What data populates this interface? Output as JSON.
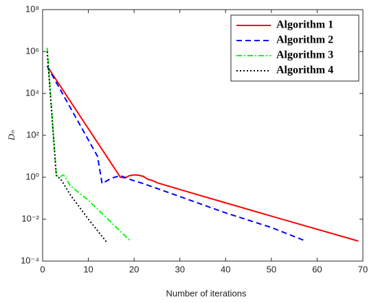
{
  "chart_data": {
    "type": "line",
    "xlabel": "Number of iterations",
    "ylabel": "Dₙ",
    "xlim": [
      0,
      70
    ],
    "xticks": [
      0,
      10,
      20,
      30,
      40,
      50,
      60,
      70
    ],
    "ylim": [
      0.0001,
      100000000
    ],
    "yscale": "log",
    "yticks": [
      {
        "value": 0.0001,
        "label": "10⁻⁴"
      },
      {
        "value": 0.01,
        "label": "10⁻²"
      },
      {
        "value": 1,
        "label": "10⁰"
      },
      {
        "value": 100,
        "label": "10²"
      },
      {
        "value": 10000,
        "label": "10⁴"
      },
      {
        "value": 1000000,
        "label": "10⁶"
      },
      {
        "value": 100000000,
        "label": "10⁸"
      }
    ],
    "legend": "upper right",
    "series": [
      {
        "name": "Algorithm 1",
        "color": "#ff0000",
        "dash": "none",
        "x": [
          1,
          17,
          18,
          19,
          20,
          21,
          22,
          23,
          24,
          25,
          30,
          40,
          50,
          60,
          69
        ],
        "values": [
          200000,
          1,
          0.95,
          1.2,
          1.3,
          1.25,
          1.1,
          0.8,
          0.7,
          0.55,
          0.26,
          0.06,
          0.014,
          0.0033,
          0.0009
        ]
      },
      {
        "name": "Algorithm 2",
        "color": "#0000ff",
        "dash": "8 5",
        "x": [
          1,
          12,
          13,
          15,
          17,
          19,
          22,
          30,
          40,
          50,
          57
        ],
        "values": [
          200000,
          10,
          0.5,
          0.9,
          1.2,
          0.8,
          0.5,
          0.12,
          0.02,
          0.004,
          0.001
        ]
      },
      {
        "name": "Algorithm 3",
        "color": "#00ff00",
        "dash": "8 3 2 3",
        "x": [
          1,
          3,
          4,
          4.5,
          5,
          6,
          10,
          19
        ],
        "values": [
          1500000,
          1.2,
          1.1,
          1.3,
          1,
          0.4,
          0.08,
          0.001
        ]
      },
      {
        "name": "Algorithm 4",
        "color": "#000000",
        "dash": "2 3",
        "x": [
          1,
          3,
          4,
          6,
          10,
          14
        ],
        "values": [
          1000000,
          1.2,
          0.8,
          0.15,
          0.01,
          0.0008
        ]
      }
    ]
  }
}
